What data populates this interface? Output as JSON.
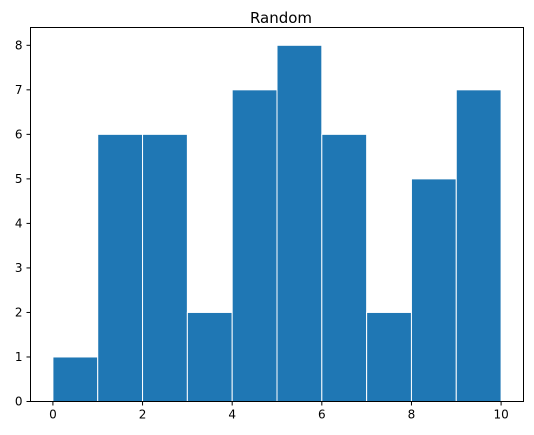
{
  "chart_data": {
    "type": "bar",
    "title": "Random",
    "xlabel": "",
    "ylabel": "",
    "bin_edges": [
      0,
      1,
      2,
      3,
      4,
      5,
      6,
      7,
      8,
      9,
      10
    ],
    "values": [
      1,
      6,
      6,
      2,
      7,
      8,
      6,
      2,
      5,
      7
    ],
    "xlim": [
      -0.5,
      10.5
    ],
    "ylim": [
      0,
      8.4
    ],
    "xticks": [
      0,
      2,
      4,
      6,
      8,
      10
    ],
    "yticks": [
      0,
      1,
      2,
      3,
      4,
      5,
      6,
      7,
      8
    ],
    "grid": false,
    "bar_color": "#1f77b4",
    "edge_color": "#ffffff"
  }
}
